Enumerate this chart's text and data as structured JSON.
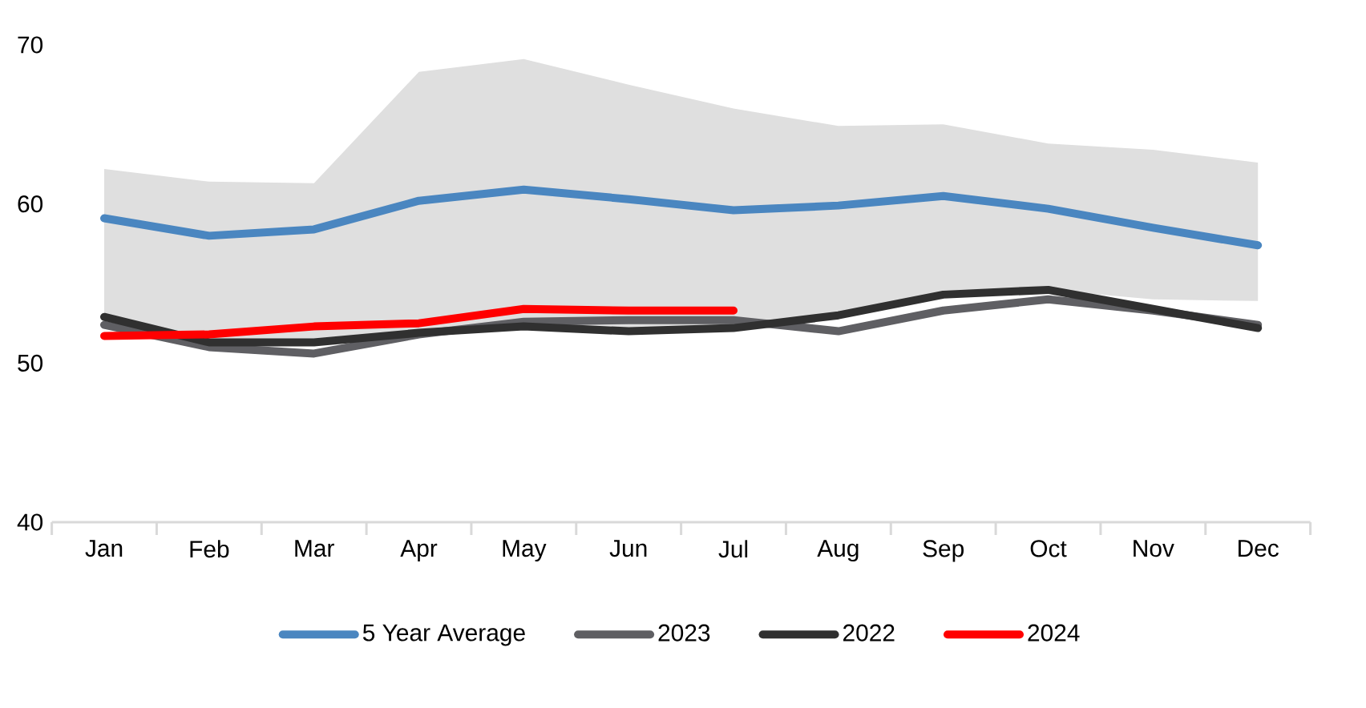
{
  "chart_data": {
    "type": "line",
    "categories": [
      "Jan",
      "Feb",
      "Mar",
      "Apr",
      "May",
      "Jun",
      "Jul",
      "Aug",
      "Sep",
      "Oct",
      "Nov",
      "Dec"
    ],
    "series": [
      {
        "name": "5 Year Average",
        "color": "#4a86c0",
        "values": [
          59.1,
          58.0,
          58.4,
          60.2,
          60.9,
          60.3,
          59.6,
          59.9,
          60.5,
          59.7,
          58.5,
          57.4
        ],
        "lower": [
          52.9,
          51.3,
          51.3,
          51.9,
          52.3,
          52.0,
          52.2,
          53.0,
          54.3,
          54.6,
          54.0,
          53.9
        ],
        "upper": [
          62.2,
          61.4,
          61.3,
          68.3,
          69.1,
          67.5,
          66.0,
          64.9,
          65.0,
          63.8,
          63.4,
          62.6
        ]
      },
      {
        "name": "2023",
        "color": "#5f5f63",
        "values": [
          52.4,
          51.0,
          50.6,
          51.8,
          52.6,
          52.7,
          52.7,
          52.0,
          53.3,
          54.0,
          53.3,
          52.4
        ]
      },
      {
        "name": "2022",
        "color": "#303030",
        "values": [
          52.9,
          51.3,
          51.3,
          51.9,
          52.3,
          52.0,
          52.2,
          53.0,
          54.3,
          54.6,
          53.4,
          52.2
        ]
      },
      {
        "name": "2024",
        "color": "#ff0000",
        "values": [
          51.7,
          51.8,
          52.3,
          52.5,
          53.4,
          53.3,
          53.3,
          null,
          null,
          null,
          null,
          null
        ]
      }
    ],
    "ylim": [
      40,
      70
    ],
    "yticks": [
      40,
      50,
      60,
      70
    ],
    "legend": "bottom"
  }
}
